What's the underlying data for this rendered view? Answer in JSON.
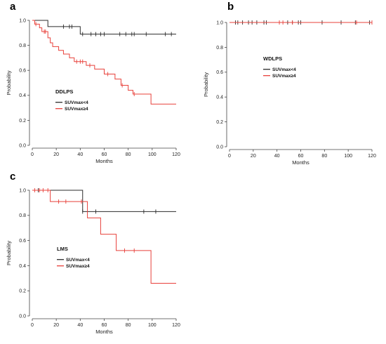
{
  "chart_data": [
    {
      "type": "line",
      "panel_label": "a",
      "title": "DDLPS",
      "xlabel": "Months",
      "ylabel": "Probability",
      "xlim": [
        0,
        120
      ],
      "ylim": [
        0,
        1.0
      ],
      "x_ticks": [
        "0",
        "20",
        "40",
        "60",
        "80",
        "100",
        "120"
      ],
      "y_ticks": [
        "0.0",
        "0.2",
        "0.4",
        "0.6",
        "0.8",
        "1.0"
      ],
      "legend_position": "middle-left",
      "series": [
        {
          "name": "SUVmax<4",
          "color": "#2b2b2b",
          "steps": [
            [
              0,
              1.0
            ],
            [
              13,
              0.95
            ],
            [
              40,
              0.89
            ],
            [
              120,
              0.89
            ]
          ],
          "censor_x": [
            26,
            31,
            33,
            42,
            49,
            53,
            57,
            60,
            73,
            78,
            83,
            85,
            95,
            111,
            116
          ]
        },
        {
          "name": "SUVmax≥4",
          "color": "#e8403a",
          "steps": [
            [
              0,
              1.0
            ],
            [
              2,
              0.97
            ],
            [
              6,
              0.94
            ],
            [
              8,
              0.91
            ],
            [
              13,
              0.86
            ],
            [
              15,
              0.82
            ],
            [
              17,
              0.79
            ],
            [
              22,
              0.76
            ],
            [
              26,
              0.73
            ],
            [
              31,
              0.7
            ],
            [
              35,
              0.67
            ],
            [
              45,
              0.64
            ],
            [
              52,
              0.61
            ],
            [
              60,
              0.57
            ],
            [
              69,
              0.53
            ],
            [
              74,
              0.48
            ],
            [
              80,
              0.44
            ],
            [
              84,
              0.41
            ],
            [
              99,
              0.33
            ],
            [
              120,
              0.33
            ]
          ],
          "censor_x": [
            3,
            10,
            11,
            37,
            40,
            42,
            48,
            63,
            75,
            85
          ]
        }
      ]
    },
    {
      "type": "line",
      "panel_label": "b",
      "title": "WDLPS",
      "xlabel": "Months",
      "ylabel": "Probability",
      "xlim": [
        0,
        120
      ],
      "ylim": [
        0,
        1.0
      ],
      "x_ticks": [
        "0",
        "20",
        "40",
        "60",
        "80",
        "100",
        "120"
      ],
      "y_ticks": [
        "0.0",
        "0.2",
        "0.4",
        "0.6",
        "0.8",
        "1.0"
      ],
      "legend_position": "center-right",
      "series": [
        {
          "name": "SUVmax<4",
          "color": "#2b2b2b",
          "steps": [
            [
              0,
              1.0
            ],
            [
              120,
              1.0
            ]
          ],
          "censor_x": [
            5,
            7,
            11,
            16,
            19,
            23,
            29,
            31,
            49,
            53,
            58,
            60,
            78,
            94,
            106,
            118
          ]
        },
        {
          "name": "SUVmax≥4",
          "color": "#e8403a",
          "steps": [
            [
              0,
              1.0
            ],
            [
              120,
              1.0
            ]
          ],
          "censor_x": [
            42,
            45,
            53,
            107,
            120
          ]
        }
      ]
    },
    {
      "type": "line",
      "panel_label": "c",
      "title": "LMS",
      "xlabel": "Months",
      "ylabel": "Probability",
      "xlim": [
        0,
        120
      ],
      "ylim": [
        0,
        1.0
      ],
      "x_ticks": [
        "0",
        "20",
        "40",
        "60",
        "80",
        "100",
        "120"
      ],
      "y_ticks": [
        "0.0",
        "0.2",
        "0.4",
        "0.6",
        "0.8",
        "1.0"
      ],
      "legend_position": "middle-left",
      "series": [
        {
          "name": "SUVmax<4",
          "color": "#2b2b2b",
          "steps": [
            [
              0,
              1.0
            ],
            [
              42,
              0.83
            ],
            [
              120,
              0.83
            ]
          ],
          "censor_x": [
            5,
            42,
            53,
            93,
            103
          ]
        },
        {
          "name": "SUVmax≥4",
          "color": "#e8403a",
          "steps": [
            [
              0,
              1.0
            ],
            [
              15,
              0.91
            ],
            [
              46,
              0.78
            ],
            [
              57,
              0.65
            ],
            [
              70,
              0.52
            ],
            [
              99,
              0.26
            ],
            [
              120,
              0.26
            ]
          ],
          "censor_x": [
            2,
            6,
            9,
            13,
            22,
            28,
            41,
            77,
            85
          ]
        }
      ]
    }
  ]
}
